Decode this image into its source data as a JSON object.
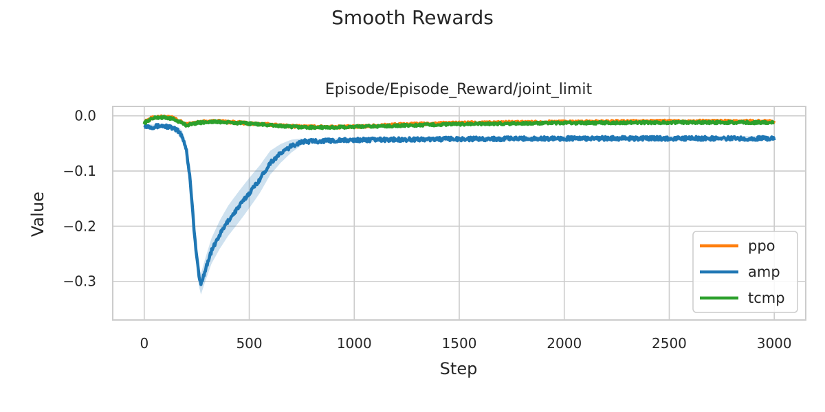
{
  "figure": {
    "suptitle": "Smooth Rewards"
  },
  "chart_data": {
    "type": "line",
    "title": "Episode/Episode_Reward/joint_limit",
    "xlabel": "Step",
    "ylabel": "Value",
    "xlim": [
      -150,
      3150
    ],
    "ylim": [
      -0.37,
      0.017
    ],
    "xticks": [
      0,
      500,
      1000,
      1500,
      2000,
      2500,
      3000
    ],
    "xtick_labels": [
      "0",
      "500",
      "1000",
      "1500",
      "2000",
      "2500",
      "3000"
    ],
    "yticks": [
      0.0,
      -0.1,
      -0.2,
      -0.3
    ],
    "ytick_labels": [
      "0.0",
      "−0.1",
      "−0.2",
      "−0.3"
    ],
    "grid": true,
    "legend_position": "lower-right",
    "series": [
      {
        "name": "ppo",
        "color": "#ff7f0e",
        "x": [
          0,
          30,
          60,
          100,
          140,
          180,
          200,
          250,
          300,
          350,
          400,
          500,
          600,
          700,
          800,
          900,
          1000,
          1200,
          1500,
          2000,
          2500,
          3000
        ],
        "y": [
          -0.012,
          -0.005,
          -0.002,
          -0.002,
          -0.004,
          -0.012,
          -0.016,
          -0.012,
          -0.01,
          -0.01,
          -0.011,
          -0.014,
          -0.016,
          -0.019,
          -0.02,
          -0.02,
          -0.02,
          -0.016,
          -0.013,
          -0.011,
          -0.01,
          -0.01
        ]
      },
      {
        "name": "amp",
        "color": "#1f77b4",
        "band": true,
        "x": [
          0,
          40,
          80,
          120,
          160,
          180,
          200,
          220,
          240,
          260,
          270,
          290,
          320,
          360,
          400,
          450,
          500,
          550,
          600,
          650,
          700,
          750,
          800,
          900,
          1000,
          1200,
          1500,
          2000,
          2500,
          3000
        ],
        "y": [
          -0.018,
          -0.02,
          -0.018,
          -0.02,
          -0.027,
          -0.036,
          -0.06,
          -0.12,
          -0.22,
          -0.29,
          -0.305,
          -0.28,
          -0.245,
          -0.215,
          -0.19,
          -0.165,
          -0.14,
          -0.115,
          -0.085,
          -0.068,
          -0.055,
          -0.047,
          -0.046,
          -0.045,
          -0.044,
          -0.043,
          -0.042,
          -0.041,
          -0.041,
          -0.041
        ]
      },
      {
        "name": "tcmp",
        "color": "#2ca02c",
        "x": [
          0,
          30,
          60,
          100,
          140,
          180,
          200,
          250,
          300,
          350,
          400,
          500,
          600,
          700,
          800,
          900,
          1000,
          1200,
          1500,
          2000,
          2500,
          3000
        ],
        "y": [
          -0.013,
          -0.006,
          -0.003,
          -0.003,
          -0.006,
          -0.013,
          -0.017,
          -0.013,
          -0.011,
          -0.011,
          -0.012,
          -0.014,
          -0.017,
          -0.02,
          -0.021,
          -0.021,
          -0.02,
          -0.018,
          -0.015,
          -0.013,
          -0.012,
          -0.012
        ]
      }
    ]
  }
}
